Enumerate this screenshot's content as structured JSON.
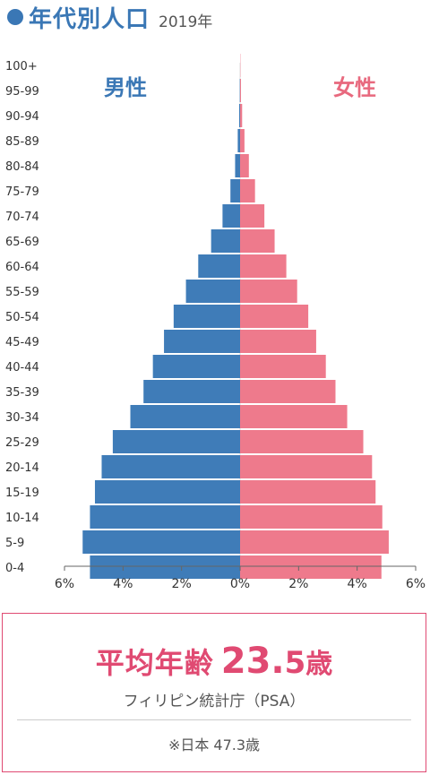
{
  "header": {
    "title": "年代別人口",
    "year": "2019年"
  },
  "chart_data": {
    "type": "bar",
    "orientation": "population-pyramid",
    "categories": [
      "100+",
      "95-99",
      "90-94",
      "85-89",
      "80-84",
      "75-79",
      "70-74",
      "65-69",
      "60-64",
      "55-59",
      "50-54",
      "45-49",
      "40-44",
      "35-39",
      "30-34",
      "25-29",
      "20-14",
      "15-19",
      "10-14",
      "5-9",
      "0-4"
    ],
    "series": [
      {
        "name": "男性",
        "color": "#3f7cb8",
        "values": [
          0.0,
          0.01,
          0.03,
          0.08,
          0.17,
          0.33,
          0.6,
          0.99,
          1.43,
          1.85,
          2.27,
          2.6,
          2.98,
          3.3,
          3.75,
          4.35,
          4.73,
          4.96,
          5.13,
          5.38,
          5.13
        ]
      },
      {
        "name": "女性",
        "color": "#ee7a8c",
        "values": [
          0.01,
          0.03,
          0.07,
          0.15,
          0.3,
          0.51,
          0.83,
          1.18,
          1.58,
          1.95,
          2.33,
          2.6,
          2.93,
          3.26,
          3.66,
          4.21,
          4.51,
          4.63,
          4.86,
          5.08,
          4.83
        ]
      }
    ],
    "xticks": [
      "6%",
      "4%",
      "2%",
      "0%",
      "2%",
      "4%",
      "6%"
    ],
    "xlim": [
      -6,
      6
    ],
    "grid": false
  },
  "summary": {
    "label": "平均年齢",
    "value_int": "23.",
    "value_dec": "5",
    "unit": "歳",
    "source": "フィリピン統計庁（PSA）",
    "japan_note": "※日本 47.3歳"
  }
}
